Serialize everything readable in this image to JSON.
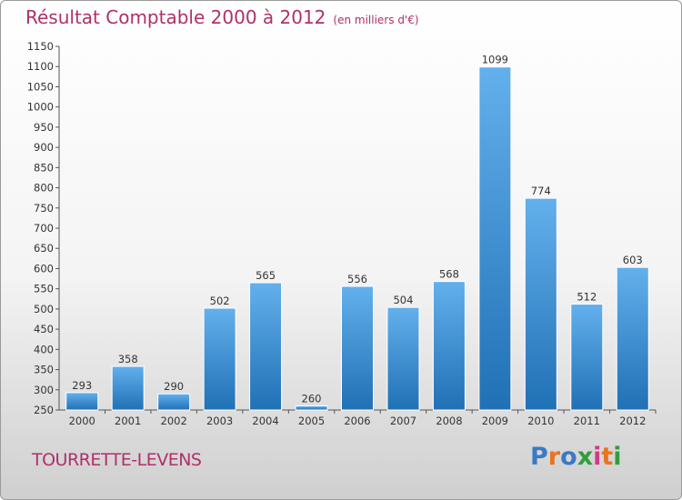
{
  "header": {
    "title": "Résultat Comptable 2000 à 2012",
    "subtitle": "(en milliers d'€)"
  },
  "footer": {
    "place": "TOURRETTE-LEVENS",
    "logo_text": "Proxiti"
  },
  "colors": {
    "title": "#b0306a",
    "bar_top": "#63b0ec",
    "bar_bottom": "#2070b5",
    "logo_letters": [
      "#3a79c6",
      "#e8741e",
      "#3a79c6",
      "#2f9e3f",
      "#d03a8a",
      "#e8741e",
      "#2f9e3f"
    ]
  },
  "chart_data": {
    "type": "bar",
    "title": "Résultat Comptable 2000 à 2012",
    "subtitle": "(en milliers d'€)",
    "xlabel": "",
    "ylabel": "",
    "categories": [
      "2000",
      "2001",
      "2002",
      "2003",
      "2004",
      "2005",
      "2006",
      "2007",
      "2008",
      "2009",
      "2010",
      "2011",
      "2012"
    ],
    "values": [
      293,
      358,
      290,
      502,
      565,
      260,
      556,
      504,
      568,
      1099,
      774,
      512,
      603
    ],
    "ylim": [
      250,
      1150
    ],
    "ytick_step": 50,
    "grid": false,
    "legend": "none"
  }
}
